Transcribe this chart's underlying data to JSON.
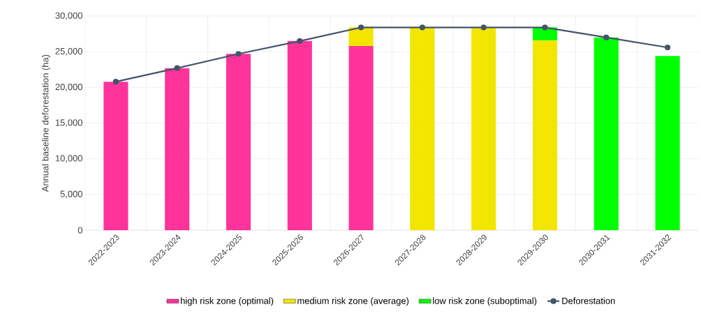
{
  "chart_data": {
    "type": "bar",
    "stacked": true,
    "ylabel": "Annual baseline deforestation (ha)",
    "categories": [
      "2022-2023",
      "2023-2024",
      "2024-2025",
      "2025-2026",
      "2026-2027",
      "2027-2028",
      "2028-2029",
      "2029-2030",
      "2030-2031",
      "2031-2032"
    ],
    "series": [
      {
        "name": "high risk zone (optimal)",
        "color": "#ff3399",
        "values": [
          20800,
          22700,
          24700,
          26500,
          25800,
          null,
          null,
          null,
          null,
          null
        ]
      },
      {
        "name": "medium risk zone (average)",
        "color": "#f2e600",
        "values": [
          null,
          null,
          null,
          null,
          2600,
          28400,
          28400,
          26600,
          null,
          null
        ]
      },
      {
        "name": "low risk zone (suboptimal)",
        "color": "#00ff00",
        "values": [
          null,
          null,
          null,
          null,
          null,
          null,
          null,
          1800,
          27000,
          24400
        ]
      },
      {
        "name": "Deforestation",
        "type": "line",
        "color": "#44546a",
        "marker": "circle",
        "values": [
          20800,
          22700,
          24700,
          26500,
          28400,
          28400,
          28400,
          28400,
          27000,
          25600
        ]
      }
    ],
    "ylim": [
      0,
      30000
    ],
    "yticks": [
      {
        "value": 0,
        "label": "0"
      },
      {
        "value": 5000,
        "label": "5,000"
      },
      {
        "value": 10000,
        "label": "10,000"
      },
      {
        "value": 15000,
        "label": "15,000"
      },
      {
        "value": 20000,
        "label": "20,000"
      },
      {
        "value": 25000,
        "label": "25,000"
      },
      {
        "value": 30000,
        "label": "30,000"
      }
    ],
    "grid": true,
    "legend": "bottom"
  }
}
